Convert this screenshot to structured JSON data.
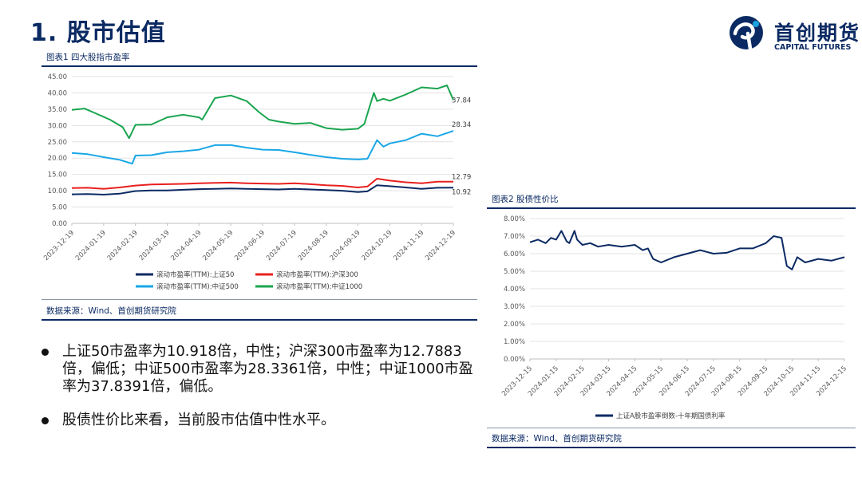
{
  "page": {
    "title": "1. 股市估值",
    "logo": {
      "cn": "首创期货",
      "en": "CAPITAL FUTURES",
      "icon": "capital-futures-logo-icon",
      "color": "#0b2a63",
      "accent": "#19a2e0"
    }
  },
  "panel1": {
    "caption": "图表1  四大股指市盈率",
    "source": "数据来源：Wind、首创期货研究院"
  },
  "panel2": {
    "caption": "图表2  股债性价比",
    "source": "数据来源：Wind、首创期货研究院"
  },
  "bullets": [
    "上证50市盈率为10.918倍，中性；沪深300市盈率为12.7883倍，偏低；中证500市盈率为28.3361倍，中性；中证1000市盈率为37.8391倍，偏低。",
    "股债性价比来看，当前股市估值中性水平。"
  ],
  "chart_data": [
    {
      "type": "line",
      "title": "",
      "x_labels": [
        "2023-12-19",
        "2024-01-19",
        "2024-02-19",
        "2024-03-19",
        "2024-04-19",
        "2024-05-19",
        "2024-06-19",
        "2024-07-19",
        "2024-08-19",
        "2024-09-19",
        "2024-10-19",
        "2024-11-19",
        "2024-12-19"
      ],
      "ylim": [
        0,
        45
      ],
      "yticks": [
        "0.00",
        "5.00",
        "10.00",
        "15.00",
        "20.00",
        "25.00",
        "30.00",
        "35.00",
        "40.00",
        "45.00"
      ],
      "grid": true,
      "legend_position": "bottom",
      "series": [
        {
          "name": "滚动市盈率(TTM):上证50",
          "color": "#0b2a63",
          "end_label": "10.92",
          "x": [
            0,
            0.5,
            1,
            1.5,
            2,
            2.5,
            3,
            3.5,
            4,
            4.5,
            5,
            5.5,
            6,
            6.5,
            7,
            7.5,
            8,
            8.5,
            9,
            9.3,
            9.6,
            10,
            10.5,
            11,
            11.5,
            12
          ],
          "values": [
            8.9,
            9.0,
            8.8,
            9.1,
            9.9,
            10.1,
            10.1,
            10.3,
            10.5,
            10.6,
            10.7,
            10.6,
            10.5,
            10.4,
            10.6,
            10.4,
            10.2,
            10.0,
            9.6,
            9.8,
            11.7,
            11.4,
            11.0,
            10.6,
            10.9,
            10.92
          ]
        },
        {
          "name": "滚动市盈率(TTM):沪深300",
          "color": "#e8201f",
          "end_label": "12.79",
          "x": [
            0,
            0.5,
            1,
            1.5,
            2,
            2.5,
            3,
            3.5,
            4,
            4.5,
            5,
            5.5,
            6,
            6.5,
            7,
            7.5,
            8,
            8.5,
            9,
            9.3,
            9.6,
            10,
            10.5,
            11,
            11.5,
            12
          ],
          "values": [
            10.8,
            10.9,
            10.6,
            11.0,
            11.6,
            11.9,
            12.0,
            12.1,
            12.3,
            12.4,
            12.5,
            12.3,
            12.2,
            12.1,
            12.3,
            12.0,
            11.7,
            11.5,
            11.0,
            11.3,
            13.7,
            13.1,
            12.6,
            12.3,
            12.8,
            12.79
          ]
        },
        {
          "name": "滚动市盈率(TTM):中证500",
          "color": "#1aa7e6",
          "end_label": "28.34",
          "x": [
            0,
            0.5,
            1,
            1.5,
            1.9,
            2,
            2.5,
            3,
            3.5,
            4,
            4.5,
            5,
            5.5,
            6,
            6.5,
            7,
            7.5,
            8,
            8.5,
            9,
            9.3,
            9.6,
            9.8,
            10,
            10.5,
            11,
            11.5,
            12
          ],
          "values": [
            21.6,
            21.2,
            20.3,
            19.5,
            18.3,
            20.8,
            20.9,
            21.8,
            22.1,
            22.6,
            24.0,
            24.0,
            23.2,
            22.6,
            22.5,
            21.8,
            21.0,
            20.3,
            19.8,
            19.6,
            19.8,
            25.5,
            23.5,
            24.5,
            25.5,
            27.5,
            26.7,
            28.34
          ]
        },
        {
          "name": "滚动市盈率(TTM):中证1000",
          "color": "#1aa54f",
          "end_label": "37.84",
          "x": [
            0,
            0.4,
            0.8,
            1.2,
            1.6,
            1.8,
            2,
            2.5,
            3,
            3.5,
            4,
            4.1,
            4.5,
            5,
            5.5,
            5.9,
            6.2,
            6.5,
            7,
            7.5,
            8,
            8.5,
            9,
            9.2,
            9.5,
            9.6,
            9.8,
            10,
            10.5,
            11,
            11.5,
            11.8,
            12
          ],
          "values": [
            34.8,
            35.2,
            33.5,
            31.8,
            29.5,
            26.1,
            30.2,
            30.3,
            32.5,
            33.3,
            32.5,
            31.8,
            38.4,
            39.2,
            37.5,
            34.0,
            31.8,
            31.2,
            30.5,
            30.8,
            29.2,
            28.7,
            29.0,
            30.5,
            40.0,
            37.5,
            38.2,
            37.6,
            39.5,
            41.7,
            41.3,
            42.3,
            37.84
          ]
        }
      ]
    },
    {
      "type": "line",
      "title": "",
      "x_labels": [
        "2023-12-15",
        "2024-01-15",
        "2024-02-15",
        "2024-03-15",
        "2024-04-15",
        "2024-05-15",
        "2024-06-15",
        "2024-07-15",
        "2024-08-15",
        "2024-09-15",
        "2024-10-15",
        "2024-11-15",
        "2024-12-15"
      ],
      "ylim": [
        0,
        8
      ],
      "yticks": [
        "0.00%",
        "1.00%",
        "2.00%",
        "3.00%",
        "4.00%",
        "5.00%",
        "6.00%",
        "7.00%",
        "8.00%"
      ],
      "grid": true,
      "legend_position": "bottom",
      "series": [
        {
          "name": "上证A股市盈率倒数-十年期国债利率",
          "color": "#0b2a63",
          "x": [
            0,
            0.3,
            0.6,
            0.8,
            1,
            1.2,
            1.4,
            1.5,
            1.7,
            1.8,
            2,
            2.3,
            2.6,
            3,
            3.5,
            4,
            4.3,
            4.5,
            4.7,
            5,
            5.5,
            6,
            6.5,
            7,
            7.5,
            8,
            8.5,
            9,
            9.3,
            9.6,
            9.8,
            10,
            10.2,
            10.5,
            11,
            11.5,
            12
          ],
          "values": [
            6.65,
            6.8,
            6.6,
            6.9,
            6.8,
            7.3,
            6.7,
            6.6,
            7.3,
            6.8,
            6.5,
            6.6,
            6.4,
            6.5,
            6.4,
            6.5,
            6.2,
            6.3,
            5.7,
            5.5,
            5.8,
            6.0,
            6.2,
            6.0,
            6.05,
            6.3,
            6.3,
            6.6,
            7.0,
            6.9,
            5.3,
            5.1,
            5.8,
            5.5,
            5.7,
            5.6,
            5.8
          ]
        }
      ]
    }
  ]
}
